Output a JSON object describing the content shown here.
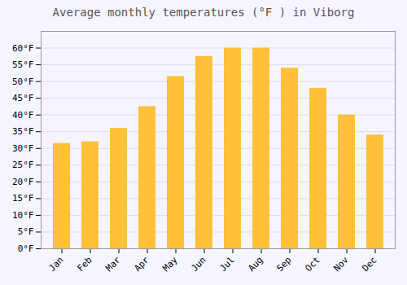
{
  "chart_data": {
    "type": "bar",
    "title": "Average monthly temperatures (°F ) in Viborg",
    "categories": [
      "Jan",
      "Feb",
      "Mar",
      "Apr",
      "May",
      "Jun",
      "Jul",
      "Aug",
      "Sep",
      "Oct",
      "Nov",
      "Dec"
    ],
    "values": [
      31.5,
      32.0,
      36.0,
      42.5,
      51.5,
      57.5,
      60.0,
      60.0,
      54.0,
      48.0,
      40.0,
      34.0
    ],
    "color": "#FFC03A",
    "ylim": [
      0,
      65
    ],
    "yticks": [
      {
        "value": 0,
        "label": "0°F"
      },
      {
        "value": 5,
        "label": "5°F"
      },
      {
        "value": 10,
        "label": "10°F"
      },
      {
        "value": 15,
        "label": "15°F"
      },
      {
        "value": 20,
        "label": "20°F"
      },
      {
        "value": 25,
        "label": "25°F"
      },
      {
        "value": 30,
        "label": "30°F"
      },
      {
        "value": 35,
        "label": "35°F"
      },
      {
        "value": 40,
        "label": "40°F"
      },
      {
        "value": 45,
        "label": "45°F"
      },
      {
        "value": 50,
        "label": "50°F"
      },
      {
        "value": 55,
        "label": "55°F"
      },
      {
        "value": 60,
        "label": "60°F"
      }
    ],
    "grid": true
  }
}
